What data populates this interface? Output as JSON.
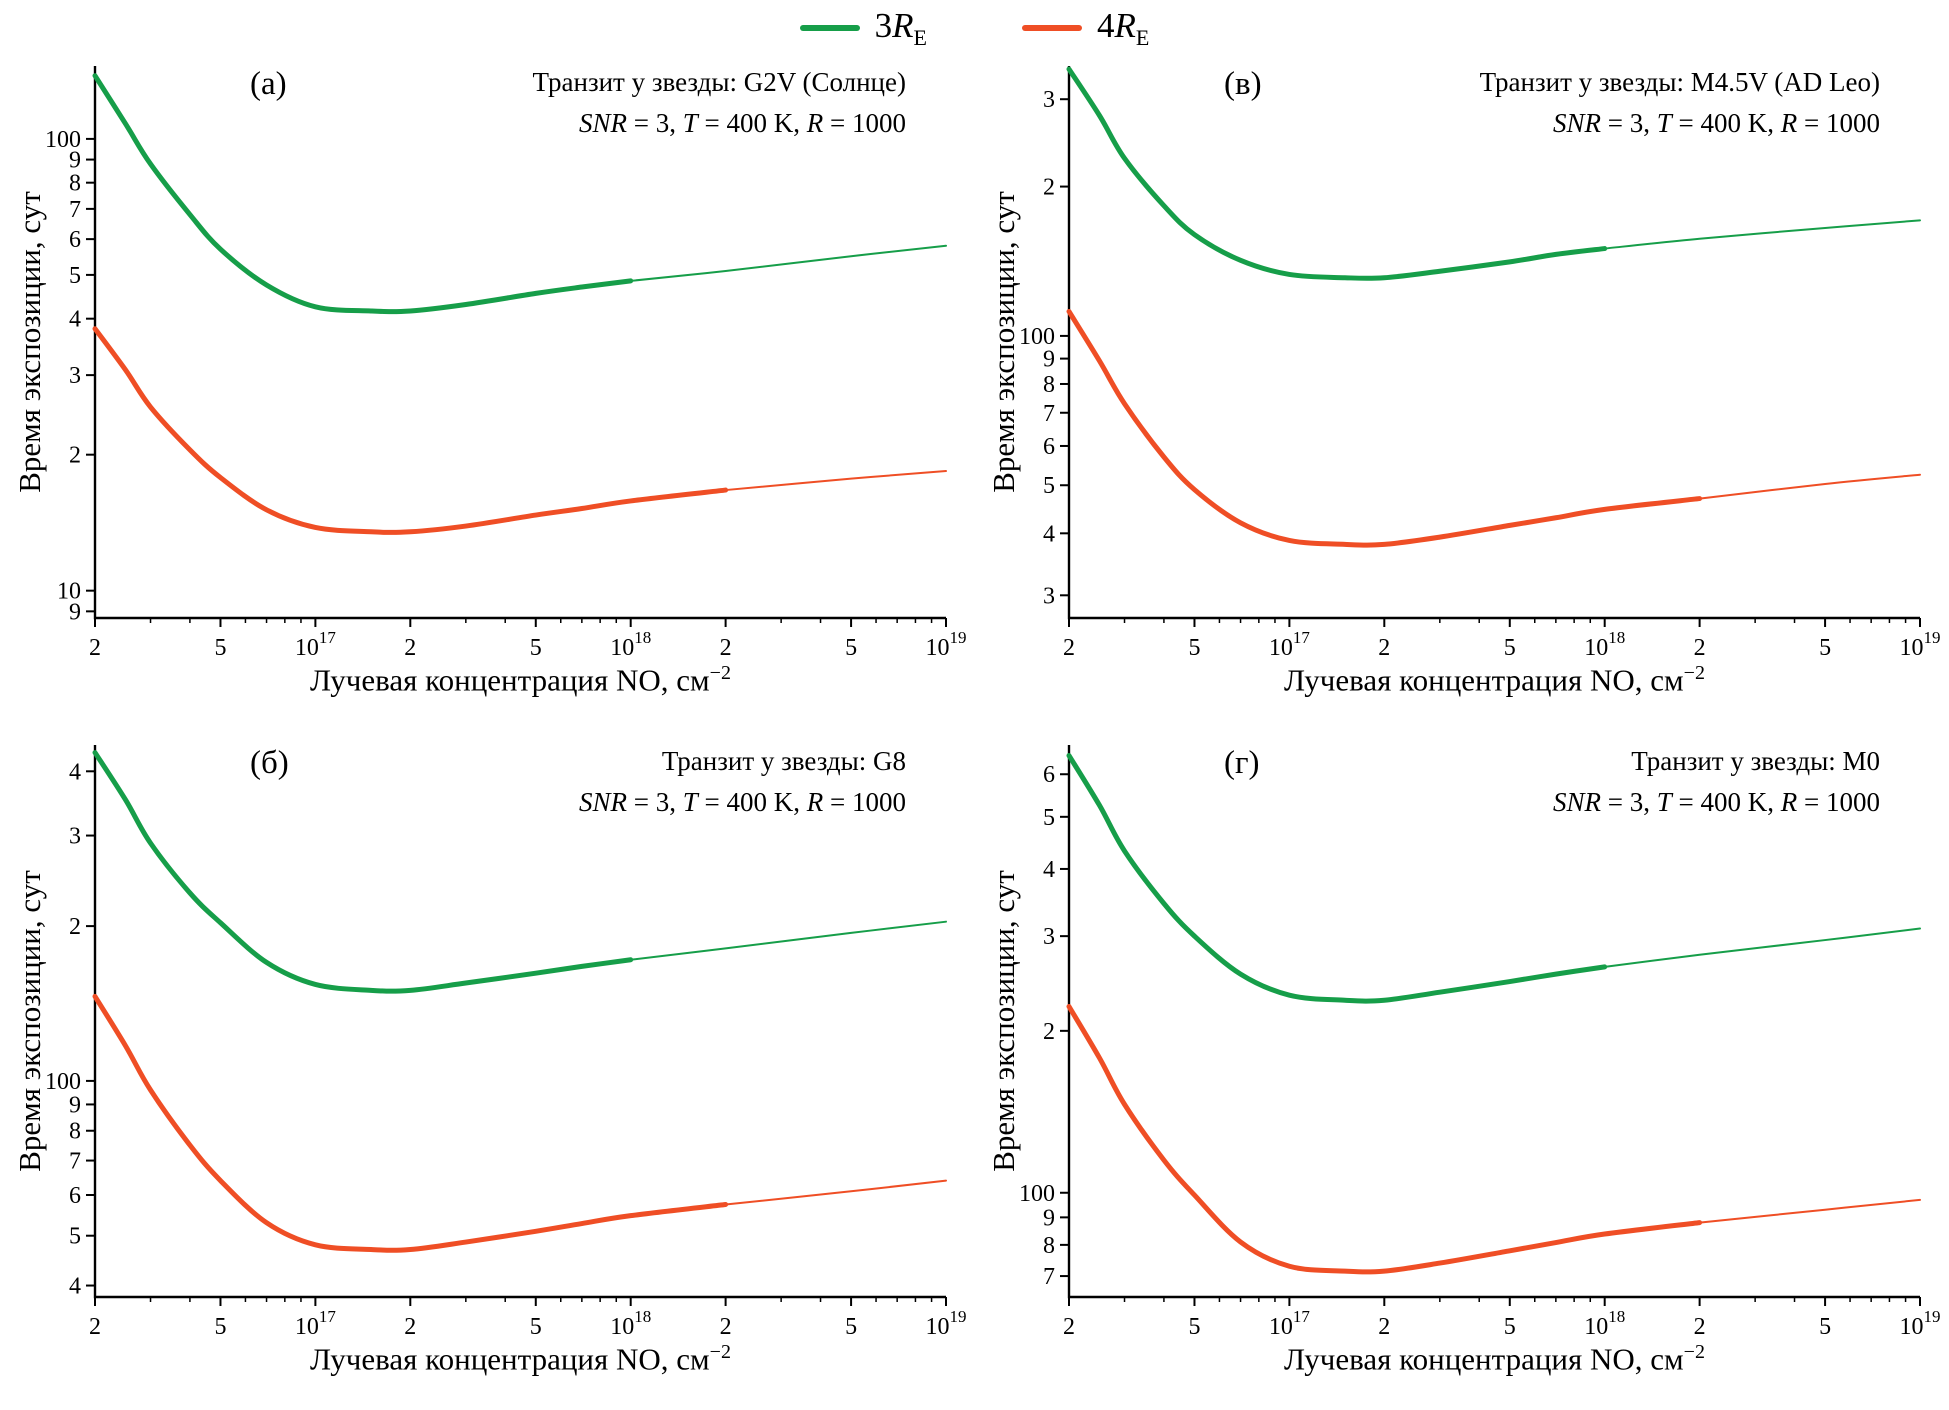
{
  "legend": {
    "items": [
      {
        "name": "3RE",
        "coef": "3",
        "symbol": "R",
        "sub": "E",
        "color": "#169e49"
      },
      {
        "name": "4RE",
        "coef": "4",
        "symbol": "R",
        "sub": "E",
        "color": "#ef4e25"
      }
    ]
  },
  "chart_data": [
    {
      "type": "line",
      "panel": "(а)",
      "title": "Транзит у звезды: G2V (Солнце)",
      "subtitle_segments": [
        {
          "t": "SNR",
          "i": true
        },
        {
          "t": " = 3, "
        },
        {
          "t": "T",
          "i": true
        },
        {
          "t": " = 400 K, "
        },
        {
          "t": "R",
          "i": true
        },
        {
          "t": " = 1000"
        }
      ],
      "xlabel_main": "Лучевая концентрация NO, см",
      "xlabel_sup": "−2",
      "ylabel": "Время экспозиции, сут",
      "xscale": "log",
      "yscale": "log",
      "xlim": [
        2e+16,
        1e+19
      ],
      "ylim": [
        8.7,
        145
      ],
      "x_ticks": [
        {
          "v": 2e+16,
          "label": "2"
        },
        {
          "v": 5e+16,
          "label": "5"
        },
        {
          "v": 1e+17,
          "base": "10",
          "exp": "17"
        },
        {
          "v": 2e+17,
          "label": "2"
        },
        {
          "v": 5e+17,
          "label": "5"
        },
        {
          "v": 1e+18,
          "base": "10",
          "exp": "18"
        },
        {
          "v": 2e+18,
          "label": "2"
        },
        {
          "v": 5e+18,
          "label": "5"
        },
        {
          "v": 1e+19,
          "base": "10",
          "exp": "19"
        }
      ],
      "y_ticks": [
        {
          "v": 9,
          "label": "9"
        },
        {
          "v": 10,
          "label": "10"
        },
        {
          "v": 20,
          "label": "2"
        },
        {
          "v": 30,
          "label": "3"
        },
        {
          "v": 40,
          "label": "4"
        },
        {
          "v": 50,
          "label": "5"
        },
        {
          "v": 60,
          "label": "6"
        },
        {
          "v": 70,
          "label": "7"
        },
        {
          "v": 80,
          "label": "8"
        },
        {
          "v": 90,
          "label": "9"
        },
        {
          "v": 100,
          "label": "100"
        }
      ],
      "series": [
        {
          "name": "3RE",
          "color": "#169e49",
          "thick_until": 1e+18,
          "points": [
            [
              2e+16,
              138
            ],
            [
              2.5e+16,
              108
            ],
            [
              3e+16,
              88
            ],
            [
              4e+16,
              68
            ],
            [
              5e+16,
              57
            ],
            [
              7e+16,
              47.5
            ],
            [
              1e+17,
              42.5
            ],
            [
              1.5e+17,
              41.6
            ],
            [
              2e+17,
              41.6
            ],
            [
              3e+17,
              43
            ],
            [
              5e+17,
              45.5
            ],
            [
              7e+17,
              47
            ],
            [
              1e+18,
              48.5
            ],
            [
              2e+18,
              51
            ],
            [
              5e+18,
              55
            ],
            [
              1e+19,
              58
            ]
          ]
        },
        {
          "name": "4RE",
          "color": "#ef4e25",
          "thick_until": 2e+18,
          "points": [
            [
              2e+16,
              38
            ],
            [
              2.5e+16,
              30.8
            ],
            [
              3e+16,
              25.5
            ],
            [
              4e+16,
              20.5
            ],
            [
              5e+16,
              17.8
            ],
            [
              7e+16,
              15.1
            ],
            [
              1e+17,
              13.8
            ],
            [
              1.5e+17,
              13.5
            ],
            [
              2e+17,
              13.5
            ],
            [
              3e+17,
              13.9
            ],
            [
              5e+17,
              14.7
            ],
            [
              7e+17,
              15.2
            ],
            [
              1e+18,
              15.8
            ],
            [
              2e+18,
              16.7
            ],
            [
              5e+18,
              17.7
            ],
            [
              1e+19,
              18.4
            ]
          ]
        }
      ]
    },
    {
      "type": "line",
      "panel": "(в)",
      "title": "Транзит у звезды: M4.5V (AD Leo)",
      "subtitle_segments": [
        {
          "t": "SNR",
          "i": true
        },
        {
          "t": " = 3, "
        },
        {
          "t": "T",
          "i": true
        },
        {
          "t": " = 400 K, "
        },
        {
          "t": "R",
          "i": true
        },
        {
          "t": " = 1000"
        }
      ],
      "xlabel_main": "Лучевая концентрация NO, см",
      "xlabel_sup": "−2",
      "ylabel": "Время экспозиции, сут",
      "xscale": "log",
      "yscale": "log",
      "xlim": [
        2e+16,
        1e+19
      ],
      "ylim": [
        27,
        350
      ],
      "x_ticks": [
        {
          "v": 2e+16,
          "label": "2"
        },
        {
          "v": 5e+16,
          "label": "5"
        },
        {
          "v": 1e+17,
          "base": "10",
          "exp": "17"
        },
        {
          "v": 2e+17,
          "label": "2"
        },
        {
          "v": 5e+17,
          "label": "5"
        },
        {
          "v": 1e+18,
          "base": "10",
          "exp": "18"
        },
        {
          "v": 2e+18,
          "label": "2"
        },
        {
          "v": 5e+18,
          "label": "5"
        },
        {
          "v": 1e+19,
          "base": "10",
          "exp": "19"
        }
      ],
      "y_ticks": [
        {
          "v": 30,
          "label": "3"
        },
        {
          "v": 40,
          "label": "4"
        },
        {
          "v": 50,
          "label": "5"
        },
        {
          "v": 60,
          "label": "6"
        },
        {
          "v": 70,
          "label": "7"
        },
        {
          "v": 80,
          "label": "8"
        },
        {
          "v": 90,
          "label": "9"
        },
        {
          "v": 100,
          "label": "100"
        },
        {
          "v": 200,
          "label": "2"
        },
        {
          "v": 300,
          "label": "3"
        }
      ],
      "series": [
        {
          "name": "3RE",
          "color": "#169e49",
          "thick_until": 1e+18,
          "points": [
            [
              2e+16,
              345
            ],
            [
              2.5e+16,
              278
            ],
            [
              3e+16,
              228
            ],
            [
              4e+16,
              183
            ],
            [
              5e+16,
              160
            ],
            [
              7e+16,
              142
            ],
            [
              1e+17,
              133
            ],
            [
              1.5e+17,
              131
            ],
            [
              2e+17,
              131
            ],
            [
              3e+17,
              135
            ],
            [
              5e+17,
              141
            ],
            [
              7e+17,
              146
            ],
            [
              1e+18,
              150
            ],
            [
              2e+18,
              157
            ],
            [
              5e+18,
              165
            ],
            [
              1e+19,
              171
            ]
          ]
        },
        {
          "name": "4RE",
          "color": "#ef4e25",
          "thick_until": 2e+18,
          "points": [
            [
              2e+16,
              112
            ],
            [
              2.5e+16,
              89
            ],
            [
              3e+16,
              73
            ],
            [
              4e+16,
              57
            ],
            [
              5e+16,
              49
            ],
            [
              7e+16,
              42
            ],
            [
              1e+17,
              38.7
            ],
            [
              1.5e+17,
              38
            ],
            [
              2e+17,
              38
            ],
            [
              3e+17,
              39.3
            ],
            [
              5e+17,
              41.5
            ],
            [
              7e+17,
              43
            ],
            [
              1e+18,
              44.7
            ],
            [
              2e+18,
              47
            ],
            [
              5e+18,
              50.3
            ],
            [
              1e+19,
              52.5
            ]
          ]
        }
      ]
    },
    {
      "type": "line",
      "panel": "(б)",
      "title": "Транзит у звезды: G8",
      "subtitle_segments": [
        {
          "t": "SNR",
          "i": true
        },
        {
          "t": " = 3, "
        },
        {
          "t": "T",
          "i": true
        },
        {
          "t": " = 400 K, "
        },
        {
          "t": "R",
          "i": true
        },
        {
          "t": " = 1000"
        }
      ],
      "xlabel_main": "Лучевая концентрация NO, см",
      "xlabel_sup": "−2",
      "ylabel": "Время экспозиции, сут",
      "xscale": "log",
      "yscale": "log",
      "xlim": [
        2e+16,
        1e+19
      ],
      "ylim": [
        38,
        450
      ],
      "x_ticks": [
        {
          "v": 2e+16,
          "label": "2"
        },
        {
          "v": 5e+16,
          "label": "5"
        },
        {
          "v": 1e+17,
          "base": "10",
          "exp": "17"
        },
        {
          "v": 2e+17,
          "label": "2"
        },
        {
          "v": 5e+17,
          "label": "5"
        },
        {
          "v": 1e+18,
          "base": "10",
          "exp": "18"
        },
        {
          "v": 2e+18,
          "label": "2"
        },
        {
          "v": 5e+18,
          "label": "5"
        },
        {
          "v": 1e+19,
          "base": "10",
          "exp": "19"
        }
      ],
      "y_ticks": [
        {
          "v": 40,
          "label": "4"
        },
        {
          "v": 50,
          "label": "5"
        },
        {
          "v": 60,
          "label": "6"
        },
        {
          "v": 70,
          "label": "7"
        },
        {
          "v": 80,
          "label": "8"
        },
        {
          "v": 90,
          "label": "9"
        },
        {
          "v": 100,
          "label": "100"
        },
        {
          "v": 200,
          "label": "2"
        },
        {
          "v": 300,
          "label": "3"
        },
        {
          "v": 400,
          "label": "4"
        }
      ],
      "series": [
        {
          "name": "3RE",
          "color": "#169e49",
          "thick_until": 1e+18,
          "points": [
            [
              2e+16,
              435
            ],
            [
              2.5e+16,
              352
            ],
            [
              3e+16,
              290
            ],
            [
              4e+16,
              232
            ],
            [
              5e+16,
              203
            ],
            [
              7e+16,
              170
            ],
            [
              1e+17,
              154
            ],
            [
              1.5e+17,
              150
            ],
            [
              2e+17,
              150
            ],
            [
              3e+17,
              155
            ],
            [
              5e+17,
              162
            ],
            [
              7e+17,
              167
            ],
            [
              1e+18,
              172
            ],
            [
              2e+18,
              181
            ],
            [
              5e+18,
              194
            ],
            [
              1e+19,
              204
            ]
          ]
        },
        {
          "name": "4RE",
          "color": "#ef4e25",
          "thick_until": 2e+18,
          "points": [
            [
              2e+16,
              146
            ],
            [
              2.5e+16,
              117
            ],
            [
              3e+16,
              96
            ],
            [
              4e+16,
              75
            ],
            [
              5e+16,
              64
            ],
            [
              7e+16,
              53
            ],
            [
              1e+17,
              48
            ],
            [
              1.5e+17,
              47
            ],
            [
              2e+17,
              47
            ],
            [
              3e+17,
              48.6
            ],
            [
              5e+17,
              51
            ],
            [
              7e+17,
              52.8
            ],
            [
              1e+18,
              54.7
            ],
            [
              2e+18,
              57.5
            ],
            [
              5e+18,
              61
            ],
            [
              1e+19,
              64
            ]
          ]
        }
      ]
    },
    {
      "type": "line",
      "panel": "(г)",
      "title": "Транзит у звезды: M0",
      "subtitle_segments": [
        {
          "t": "SNR",
          "i": true
        },
        {
          "t": " = 3, "
        },
        {
          "t": "T",
          "i": true
        },
        {
          "t": " = 400 K, "
        },
        {
          "t": "R",
          "i": true
        },
        {
          "t": " = 1000"
        }
      ],
      "xlabel_main": "Лучевая концентрация NO, см",
      "xlabel_sup": "−2",
      "ylabel": "Время экспозиции, сут",
      "xscale": "log",
      "yscale": "log",
      "xlim": [
        2e+16,
        1e+19
      ],
      "ylim": [
        64,
        680
      ],
      "x_ticks": [
        {
          "v": 2e+16,
          "label": "2"
        },
        {
          "v": 5e+16,
          "label": "5"
        },
        {
          "v": 1e+17,
          "base": "10",
          "exp": "17"
        },
        {
          "v": 2e+17,
          "label": "2"
        },
        {
          "v": 5e+17,
          "label": "5"
        },
        {
          "v": 1e+18,
          "base": "10",
          "exp": "18"
        },
        {
          "v": 2e+18,
          "label": "2"
        },
        {
          "v": 5e+18,
          "label": "5"
        },
        {
          "v": 1e+19,
          "base": "10",
          "exp": "19"
        }
      ],
      "y_ticks": [
        {
          "v": 70,
          "label": "7"
        },
        {
          "v": 80,
          "label": "8"
        },
        {
          "v": 90,
          "label": "9"
        },
        {
          "v": 100,
          "label": "100"
        },
        {
          "v": 200,
          "label": "2"
        },
        {
          "v": 300,
          "label": "3"
        },
        {
          "v": 400,
          "label": "4"
        },
        {
          "v": 500,
          "label": "5"
        },
        {
          "v": 600,
          "label": "6"
        }
      ],
      "series": [
        {
          "name": "3RE",
          "color": "#169e49",
          "thick_until": 1e+18,
          "points": [
            [
              2e+16,
              650
            ],
            [
              2.5e+16,
              525
            ],
            [
              3e+16,
              432
            ],
            [
              4e+16,
              345
            ],
            [
              5e+16,
              300
            ],
            [
              7e+16,
              255
            ],
            [
              1e+17,
              233
            ],
            [
              1.5e+17,
              228
            ],
            [
              2e+17,
              228
            ],
            [
              3e+17,
              236
            ],
            [
              5e+17,
              247
            ],
            [
              7e+17,
              255
            ],
            [
              1e+18,
              263
            ],
            [
              2e+18,
              277
            ],
            [
              5e+18,
              295
            ],
            [
              1e+19,
              310
            ]
          ]
        },
        {
          "name": "4RE",
          "color": "#ef4e25",
          "thick_until": 2e+18,
          "points": [
            [
              2e+16,
              222
            ],
            [
              2.5e+16,
              178
            ],
            [
              3e+16,
              146
            ],
            [
              4e+16,
              115
            ],
            [
              5e+16,
              99
            ],
            [
              7e+16,
              81
            ],
            [
              1e+17,
              73
            ],
            [
              1.5e+17,
              71.5
            ],
            [
              2e+17,
              71.5
            ],
            [
              3e+17,
              74
            ],
            [
              5e+17,
              78
            ],
            [
              7e+17,
              80.8
            ],
            [
              1e+18,
              83.8
            ],
            [
              2e+18,
              88
            ],
            [
              5e+18,
              93
            ],
            [
              1e+19,
              97
            ]
          ]
        }
      ]
    }
  ]
}
